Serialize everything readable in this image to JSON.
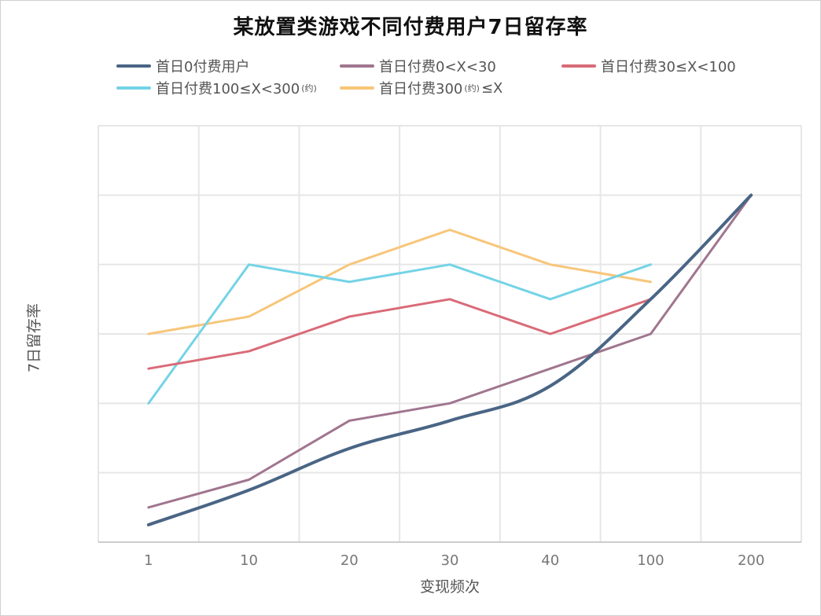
{
  "chart_data": {
    "type": "line",
    "title": "某放置类游戏不同付费用户7日留存率",
    "xlabel": "变现频次",
    "ylabel": "7日留存率",
    "categories": [
      "1",
      "10",
      "20",
      "30",
      "40",
      "100",
      "200"
    ],
    "ylim": [
      0,
      6
    ],
    "grid": true,
    "legend_position": "top",
    "series": [
      {
        "name": "首日0付费用户",
        "color": "#4a6585",
        "smooth": true,
        "values": [
          0.25,
          0.75,
          1.35,
          1.75,
          2.25,
          3.5,
          5.0
        ]
      },
      {
        "name": "首日付费0<X<30",
        "color": "#a0758f",
        "smooth": false,
        "values": [
          0.5,
          0.9,
          1.75,
          2.0,
          2.5,
          3.0,
          5.0
        ]
      },
      {
        "name": "首日付费30≤X<100",
        "color": "#d96b78",
        "smooth": false,
        "values": [
          2.5,
          2.75,
          3.25,
          3.5,
          3.0,
          3.5,
          null
        ]
      },
      {
        "name": "首日付费100≤X<300",
        "suffix": "(约)",
        "color": "#74d3e6",
        "smooth": false,
        "values": [
          2.0,
          4.0,
          3.75,
          4.0,
          3.5,
          4.0,
          null
        ]
      },
      {
        "name": "首日付费300",
        "suffix": "(约)",
        "tail": "≤X",
        "color": "#f7c67a",
        "smooth": false,
        "values": [
          3.0,
          3.25,
          4.0,
          4.5,
          4.0,
          3.75,
          null
        ]
      }
    ]
  }
}
